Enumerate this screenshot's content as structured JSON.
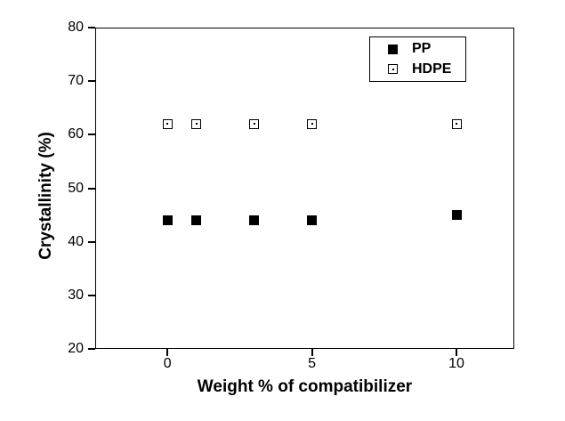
{
  "chart_data": {
    "type": "scatter",
    "title": "",
    "xlabel": "Weight % of compatibilizer",
    "ylabel": "Crystallinity (%)",
    "xlim": [
      -2.5,
      12
    ],
    "ylim": [
      20,
      80
    ],
    "x_ticks": [
      0,
      5,
      10
    ],
    "y_ticks": [
      20,
      30,
      40,
      50,
      60,
      70,
      80
    ],
    "grid": false,
    "legend_position": "top-right",
    "x": [
      0,
      1,
      3,
      5,
      10
    ],
    "series": [
      {
        "name": "PP",
        "marker": "filled-square",
        "values": [
          44,
          44,
          44,
          44,
          45
        ]
      },
      {
        "name": "HDPE",
        "marker": "open-square-dot",
        "values": [
          62,
          62,
          62,
          62,
          62
        ]
      }
    ]
  },
  "colors": {
    "marker": "#000000",
    "axis": "#000000",
    "background": "#ffffff"
  }
}
